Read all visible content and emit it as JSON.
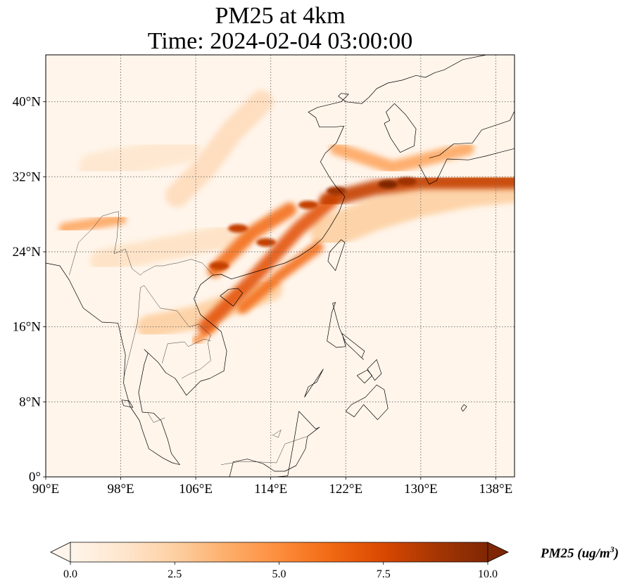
{
  "title_line1": "PM25 at 4km",
  "title_line2": "Time: 2024-02-04 03:00:00",
  "map": {
    "lon_range": [
      90,
      140
    ],
    "lat_range": [
      0,
      45
    ],
    "lon_ticks": [
      90,
      98,
      106,
      114,
      122,
      130,
      138
    ],
    "lat_ticks": [
      0,
      8,
      16,
      24,
      32,
      40
    ],
    "lon_tick_labels": [
      "90°E",
      "98°E",
      "106°E",
      "114°E",
      "122°E",
      "130°E",
      "138°E"
    ],
    "lat_tick_labels": [
      "0°",
      "8°N",
      "16°N",
      "24°N",
      "32°N",
      "40°N"
    ],
    "grid": "dotted"
  },
  "colorbar": {
    "ticks": [
      "0.0",
      "2.5",
      "5.0",
      "7.5",
      "10.0"
    ],
    "min": 0,
    "max": 10,
    "label_base": "PM25 (ug/m",
    "label_exp": "3",
    "label_close": ")",
    "colormap": [
      "#fff5eb",
      "#fee6ce",
      "#fdd0a2",
      "#fdae6b",
      "#fd8d3c",
      "#f16913",
      "#d94801",
      "#a63603",
      "#7f2704"
    ],
    "extend": "both"
  },
  "plumes": [
    {
      "lon": [
        107,
        112,
        117,
        120.5
      ],
      "lat": [
        16,
        21,
        26.5,
        29.5
      ],
      "value": 7,
      "width": 1.5
    },
    {
      "lon": [
        108,
        112,
        116
      ],
      "lat": [
        22,
        26,
        28.5
      ],
      "value": 6,
      "width": 1.5
    },
    {
      "lon": [
        111,
        115,
        119
      ],
      "lat": [
        18,
        21.5,
        24.5
      ],
      "value": 6,
      "width": 1.2
    },
    {
      "lon": [
        120,
        125,
        130,
        135,
        140
      ],
      "lat": [
        29.5,
        30.8,
        31.5,
        31.5,
        31.5
      ],
      "value": 8,
      "width": 1.6
    },
    {
      "lon": [
        120,
        125,
        130,
        135,
        140
      ],
      "lat": [
        26,
        28,
        29.5,
        30.5,
        31
      ],
      "value": 2.5,
      "width": 3.5
    },
    {
      "lon": [
        121,
        124,
        127,
        131,
        135
      ],
      "lat": [
        35,
        34,
        33,
        34,
        35
      ],
      "value": 4,
      "width": 1.4
    },
    {
      "lon": [
        92,
        95,
        98
      ],
      "lat": [
        26.5,
        27,
        27.5
      ],
      "value": 4,
      "width": 1.2
    },
    {
      "lon": [
        101,
        106,
        110,
        114
      ],
      "lat": [
        16,
        17,
        18.5,
        20
      ],
      "value": 2.5,
      "width": 2.5
    },
    {
      "lon": [
        106,
        108
      ],
      "lat": [
        14.5,
        16
      ],
      "value": 5,
      "width": 0.8
    },
    {
      "lon": [
        104,
        107,
        110,
        113
      ],
      "lat": [
        30,
        33,
        37,
        40
      ],
      "value": 1.8,
      "width": 2.5
    },
    {
      "lon": [
        96,
        101,
        106,
        111
      ],
      "lat": [
        23,
        24,
        25,
        26
      ],
      "value": 1.5,
      "width": 2.5
    },
    {
      "lon": [
        95,
        100,
        105
      ],
      "lat": [
        33,
        34,
        35
      ],
      "value": 1.2,
      "width": 3
    }
  ],
  "hotspots": [
    {
      "lon": 126.5,
      "lat": 31.2,
      "value": 10
    },
    {
      "lon": 128.5,
      "lat": 31.5,
      "value": 9
    },
    {
      "lon": 121,
      "lat": 30.5,
      "value": 9
    },
    {
      "lon": 118,
      "lat": 29,
      "value": 8
    },
    {
      "lon": 110.5,
      "lat": 26.5,
      "value": 8
    },
    {
      "lon": 113.5,
      "lat": 25,
      "value": 8
    },
    {
      "lon": 108.5,
      "lat": 22.5,
      "value": 8
    }
  ],
  "coastlines": [
    {
      "lon": [
        90,
        91.5,
        92.5,
        94,
        96,
        97.7,
        98.5,
        98.3,
        99,
        100,
        100.3,
        101,
        102.5,
        103.5,
        104.3
      ],
      "lat": [
        22.8,
        22.5,
        21,
        18,
        16.5,
        16.4,
        13,
        10,
        7.5,
        6,
        5,
        3,
        2,
        1.5,
        1.3
      ]
    },
    {
      "lon": [
        104.3,
        103.4,
        103,
        102.3,
        101.5,
        100.3,
        99.9,
        100.5,
        100.9,
        100.5,
        102,
        102.8,
        103.8,
        105,
        106.5,
        107.5,
        109,
        109.3,
        108.7,
        106.5,
        105.8,
        106.5,
        107.8,
        108.7,
        109.8,
        111.5,
        113.5,
        115.5,
        117,
        118.5,
        119.5,
        120.3,
        121.3,
        121.9,
        121,
        120.3,
        119.3,
        119.8,
        121,
        121.8,
        120.6,
        119.2,
        118.8,
        118,
        119,
        121.5,
        122.3,
        121.5,
        121.2,
        122,
        123.7,
        124.5,
        125.3,
        126.5,
        128,
        129.5,
        130.5,
        131.5,
        132.5,
        134.5,
        137,
        139,
        140
      ],
      "lat": [
        1.3,
        2.5,
        4,
        6,
        6.8,
        6.9,
        9,
        12,
        13.2,
        13.6,
        12.2,
        11.1,
        10.5,
        8.7,
        10.2,
        10.5,
        11.3,
        13.4,
        15.5,
        17.3,
        19,
        20.5,
        21.5,
        21.6,
        21.1,
        21.6,
        22.2,
        22.8,
        23.5,
        24.5,
        25.4,
        26.6,
        28.3,
        29.9,
        30.9,
        31.9,
        33.6,
        34.5,
        35.6,
        37.4,
        37.3,
        37.3,
        38.3,
        38.9,
        39.4,
        40,
        40.8,
        40.9,
        40.6,
        40,
        39.8,
        40.5,
        41.4,
        42,
        42.3,
        42.8,
        42.6,
        43.1,
        43.4,
        44.5,
        45,
        45,
        45
      ]
    },
    {
      "lon": [
        126.1,
        126.8,
        127.8,
        129.3,
        129.4,
        129.5,
        128.4,
        127.2,
        126.3,
        126.7,
        126.1
      ],
      "lat": [
        37.7,
        36.1,
        34.6,
        35.3,
        36.4,
        37.1,
        38.6,
        39.8,
        38.9,
        38,
        37.7
      ]
    },
    {
      "lon": [
        129.8,
        130.9,
        131.7,
        132.8,
        135.1,
        136.9,
        138.8,
        140,
        140
      ],
      "lat": [
        33.3,
        31.2,
        31.6,
        33.9,
        33.8,
        34.2,
        34.7,
        35,
        40
      ]
    },
    {
      "lon": [
        130.9,
        132,
        133.5,
        135.5,
        136.5,
        139.5,
        140
      ],
      "lat": [
        34,
        34.3,
        35.5,
        35.6,
        37,
        38,
        39
      ]
    },
    {
      "lon": [
        108.6,
        110,
        111,
        110.5,
        109.5,
        108.6
      ],
      "lat": [
        19.3,
        18.2,
        19.6,
        20.1,
        20,
        19.3
      ]
    },
    {
      "lon": [
        120.1,
        120.9,
        121.9,
        121.5,
        120.3,
        120.1
      ],
      "lat": [
        23,
        22,
        25,
        25.3,
        24,
        23
      ]
    },
    {
      "lon": [
        120,
        121,
        122,
        121.6,
        124,
        123.7,
        123.9,
        122,
        121.3,
        120.6,
        120.9,
        120.5,
        120
      ],
      "lat": [
        14.5,
        13.8,
        13.9,
        15.3,
        13.4,
        12.7,
        12.5,
        14.3,
        15.9,
        18.5,
        18.6,
        17.5,
        14.5
      ]
    },
    {
      "lon": [
        122,
        122.9,
        123.9,
        125.4,
        126.5,
        126.1,
        125.3,
        124.1,
        122.6,
        122
      ],
      "lat": [
        7,
        6.4,
        7.7,
        6.1,
        7.3,
        9.3,
        9.8,
        8.5,
        7.7,
        7
      ]
    },
    {
      "lon": [
        117,
        118.8,
        119.2,
        117.9,
        117.7,
        116.7,
        115.5,
        114.4,
        113.2,
        111.5,
        110,
        109.6,
        110.4,
        111.8,
        113,
        114.5,
        115.8,
        116.5,
        117
      ],
      "lat": [
        7,
        5.1,
        5.3,
        4.3,
        3,
        1.2,
        0.6,
        0.6,
        1.4,
        1.9,
        1.6,
        0,
        0,
        0,
        0,
        0,
        0.1,
        4,
        7
      ]
    },
    {
      "lon": [
        118,
        118.9,
        119.6,
        117.6,
        118
      ],
      "lat": [
        9.6,
        10.1,
        11.5,
        8.5,
        9.6
      ]
    },
    {
      "lon": [
        123.2,
        124.3,
        124.8,
        124,
        123.2
      ],
      "lat": [
        10.8,
        11.4,
        10.8,
        10,
        10.8
      ]
    },
    {
      "lon": [
        124.3,
        125.3,
        125.8,
        125.1,
        124.3
      ],
      "lat": [
        11.5,
        12.5,
        11,
        10.3,
        11.5
      ]
    },
    {
      "lon": [
        98.1,
        98.9,
        99.3,
        98.3,
        98.1
      ],
      "lat": [
        8.2,
        8.1,
        7.4,
        7.6,
        8.2
      ]
    },
    {
      "lon": [
        134.3,
        134.6,
        134.9,
        134.5,
        134.3
      ],
      "lat": [
        7.3,
        7.7,
        7.5,
        7,
        7.3
      ]
    }
  ],
  "borders": [
    {
      "lon": [
        92.5,
        93.5,
        95,
        96,
        97.3,
        97.8,
        97.6,
        97.3
      ],
      "lat": [
        21.5,
        25,
        26.5,
        27.8,
        28.2,
        28.3,
        25.5,
        23.8
      ]
    },
    {
      "lon": [
        97.3,
        98.5,
        99.2,
        100.1,
        100.4,
        101.7,
        102.5,
        103.4,
        104,
        105.5,
        106.7,
        107.7,
        108
      ],
      "lat": [
        23.8,
        24.3,
        22.2,
        21.5,
        21.8,
        22.5,
        22.5,
        22.7,
        22.8,
        23.2,
        22.8,
        21.7,
        21.5
      ]
    },
    {
      "lon": [
        98.3,
        99.8,
        100.1,
        100.5,
        101.2,
        102.2,
        104,
        105.3,
        106.3,
        107.6,
        107.3,
        107.6,
        106.5,
        105.2,
        104.5
      ],
      "lat": [
        10.5,
        16.5,
        20.2,
        20.4,
        19.4,
        18,
        17.7,
        16,
        16.3,
        15.1,
        14.3,
        12.4,
        11.5,
        10.9,
        10.5
      ]
    },
    {
      "lon": [
        102.4,
        103,
        104.8,
        105.2,
        106.9,
        107.6
      ],
      "lat": [
        12.1,
        14.2,
        14.4,
        13.9,
        14.7,
        14.5
      ]
    },
    {
      "lon": [
        100.9,
        101.5,
        102.7
      ],
      "lat": [
        6.8,
        5.8,
        6.3
      ]
    },
    {
      "lon": [
        108.7,
        110.5,
        112.5,
        114.6,
        115.5,
        117.8
      ],
      "lat": [
        1.3,
        1.6,
        1.6,
        1.5,
        3.5,
        4.3
      ]
    },
    {
      "lon": [
        114.1,
        114.8,
        115.1,
        114.3
      ],
      "lat": [
        4.5,
        4.2,
        5,
        4.5
      ]
    }
  ]
}
